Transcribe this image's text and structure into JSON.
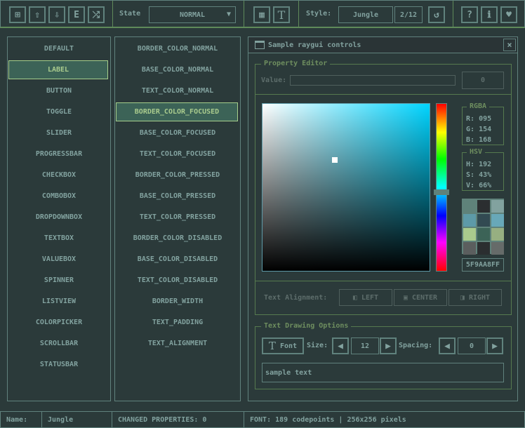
{
  "toolbar": {
    "icons": [
      "file-new-icon",
      "file-open-icon",
      "file-save-icon",
      "file-export-icon",
      "random-icon"
    ],
    "state_label": "State",
    "state_value": "NORMAL",
    "style_label": "Style:",
    "style_value": "Jungle",
    "style_index": "2/12",
    "help_icon": "?"
  },
  "controls": [
    "DEFAULT",
    "LABEL",
    "BUTTON",
    "TOGGLE",
    "SLIDER",
    "PROGRESSBAR",
    "CHECKBOX",
    "COMBOBOX",
    "DROPDOWNBOX",
    "TEXTBOX",
    "VALUEBOX",
    "SPINNER",
    "LISTVIEW",
    "COLORPICKER",
    "SCROLLBAR",
    "STATUSBAR"
  ],
  "selected_control": "LABEL",
  "properties": [
    "BORDER_COLOR_NORMAL",
    "BASE_COLOR_NORMAL",
    "TEXT_COLOR_NORMAL",
    "BORDER_COLOR_FOCUSED",
    "BASE_COLOR_FOCUSED",
    "TEXT_COLOR_FOCUSED",
    "BORDER_COLOR_PRESSED",
    "BASE_COLOR_PRESSED",
    "TEXT_COLOR_PRESSED",
    "BORDER_COLOR_DISABLED",
    "BASE_COLOR_DISABLED",
    "TEXT_COLOR_DISABLED",
    "BORDER_WIDTH",
    "TEXT_PADDING",
    "TEXT_ALIGNMENT"
  ],
  "selected_property": "BORDER_COLOR_FOCUSED",
  "window": {
    "title": "Sample raygui controls",
    "close": "×"
  },
  "property_editor": {
    "title": "Property Editor",
    "value_label": "Value:",
    "value_input": "",
    "value_box": "0",
    "picker_hue_color": "#00d4ff",
    "hue_percent": 53,
    "rgba_title": "RGBA",
    "r": "R:",
    "r_val": "095",
    "g": "G:",
    "g_val": "154",
    "b": "B:",
    "b_val": "168",
    "hsv_title": "HSV",
    "h": "H:",
    "h_val": "192",
    "s": "S:",
    "s_val": "43%",
    "v": "V:",
    "v_val": "66%",
    "palette": [
      "#5f827a",
      "#2b2e30",
      "#82a29f",
      "#5d9aa8",
      "#324a52",
      "#68a8b8",
      "#a9cb8d",
      "#3c6357",
      "#97af81",
      "#5b5e5e",
      "#2b2e30",
      "#666b69"
    ],
    "hex": "5F9AA8FF",
    "alignment_label": "Text Alignment:",
    "left": "LEFT",
    "center": "CENTER",
    "right": "RIGHT"
  },
  "text_options": {
    "title": "Text Drawing Options",
    "font_label": "Font",
    "size_label": "Size:",
    "size_value": "12",
    "spacing_label": "Spacing:",
    "spacing_value": "0",
    "sample_text": "sample text"
  },
  "status": {
    "name_label": "Name:",
    "name_value": "Jungle",
    "changed": "CHANGED PROPERTIES: 0",
    "font": "FONT: 189 codepoints | 256x256 pixels"
  }
}
